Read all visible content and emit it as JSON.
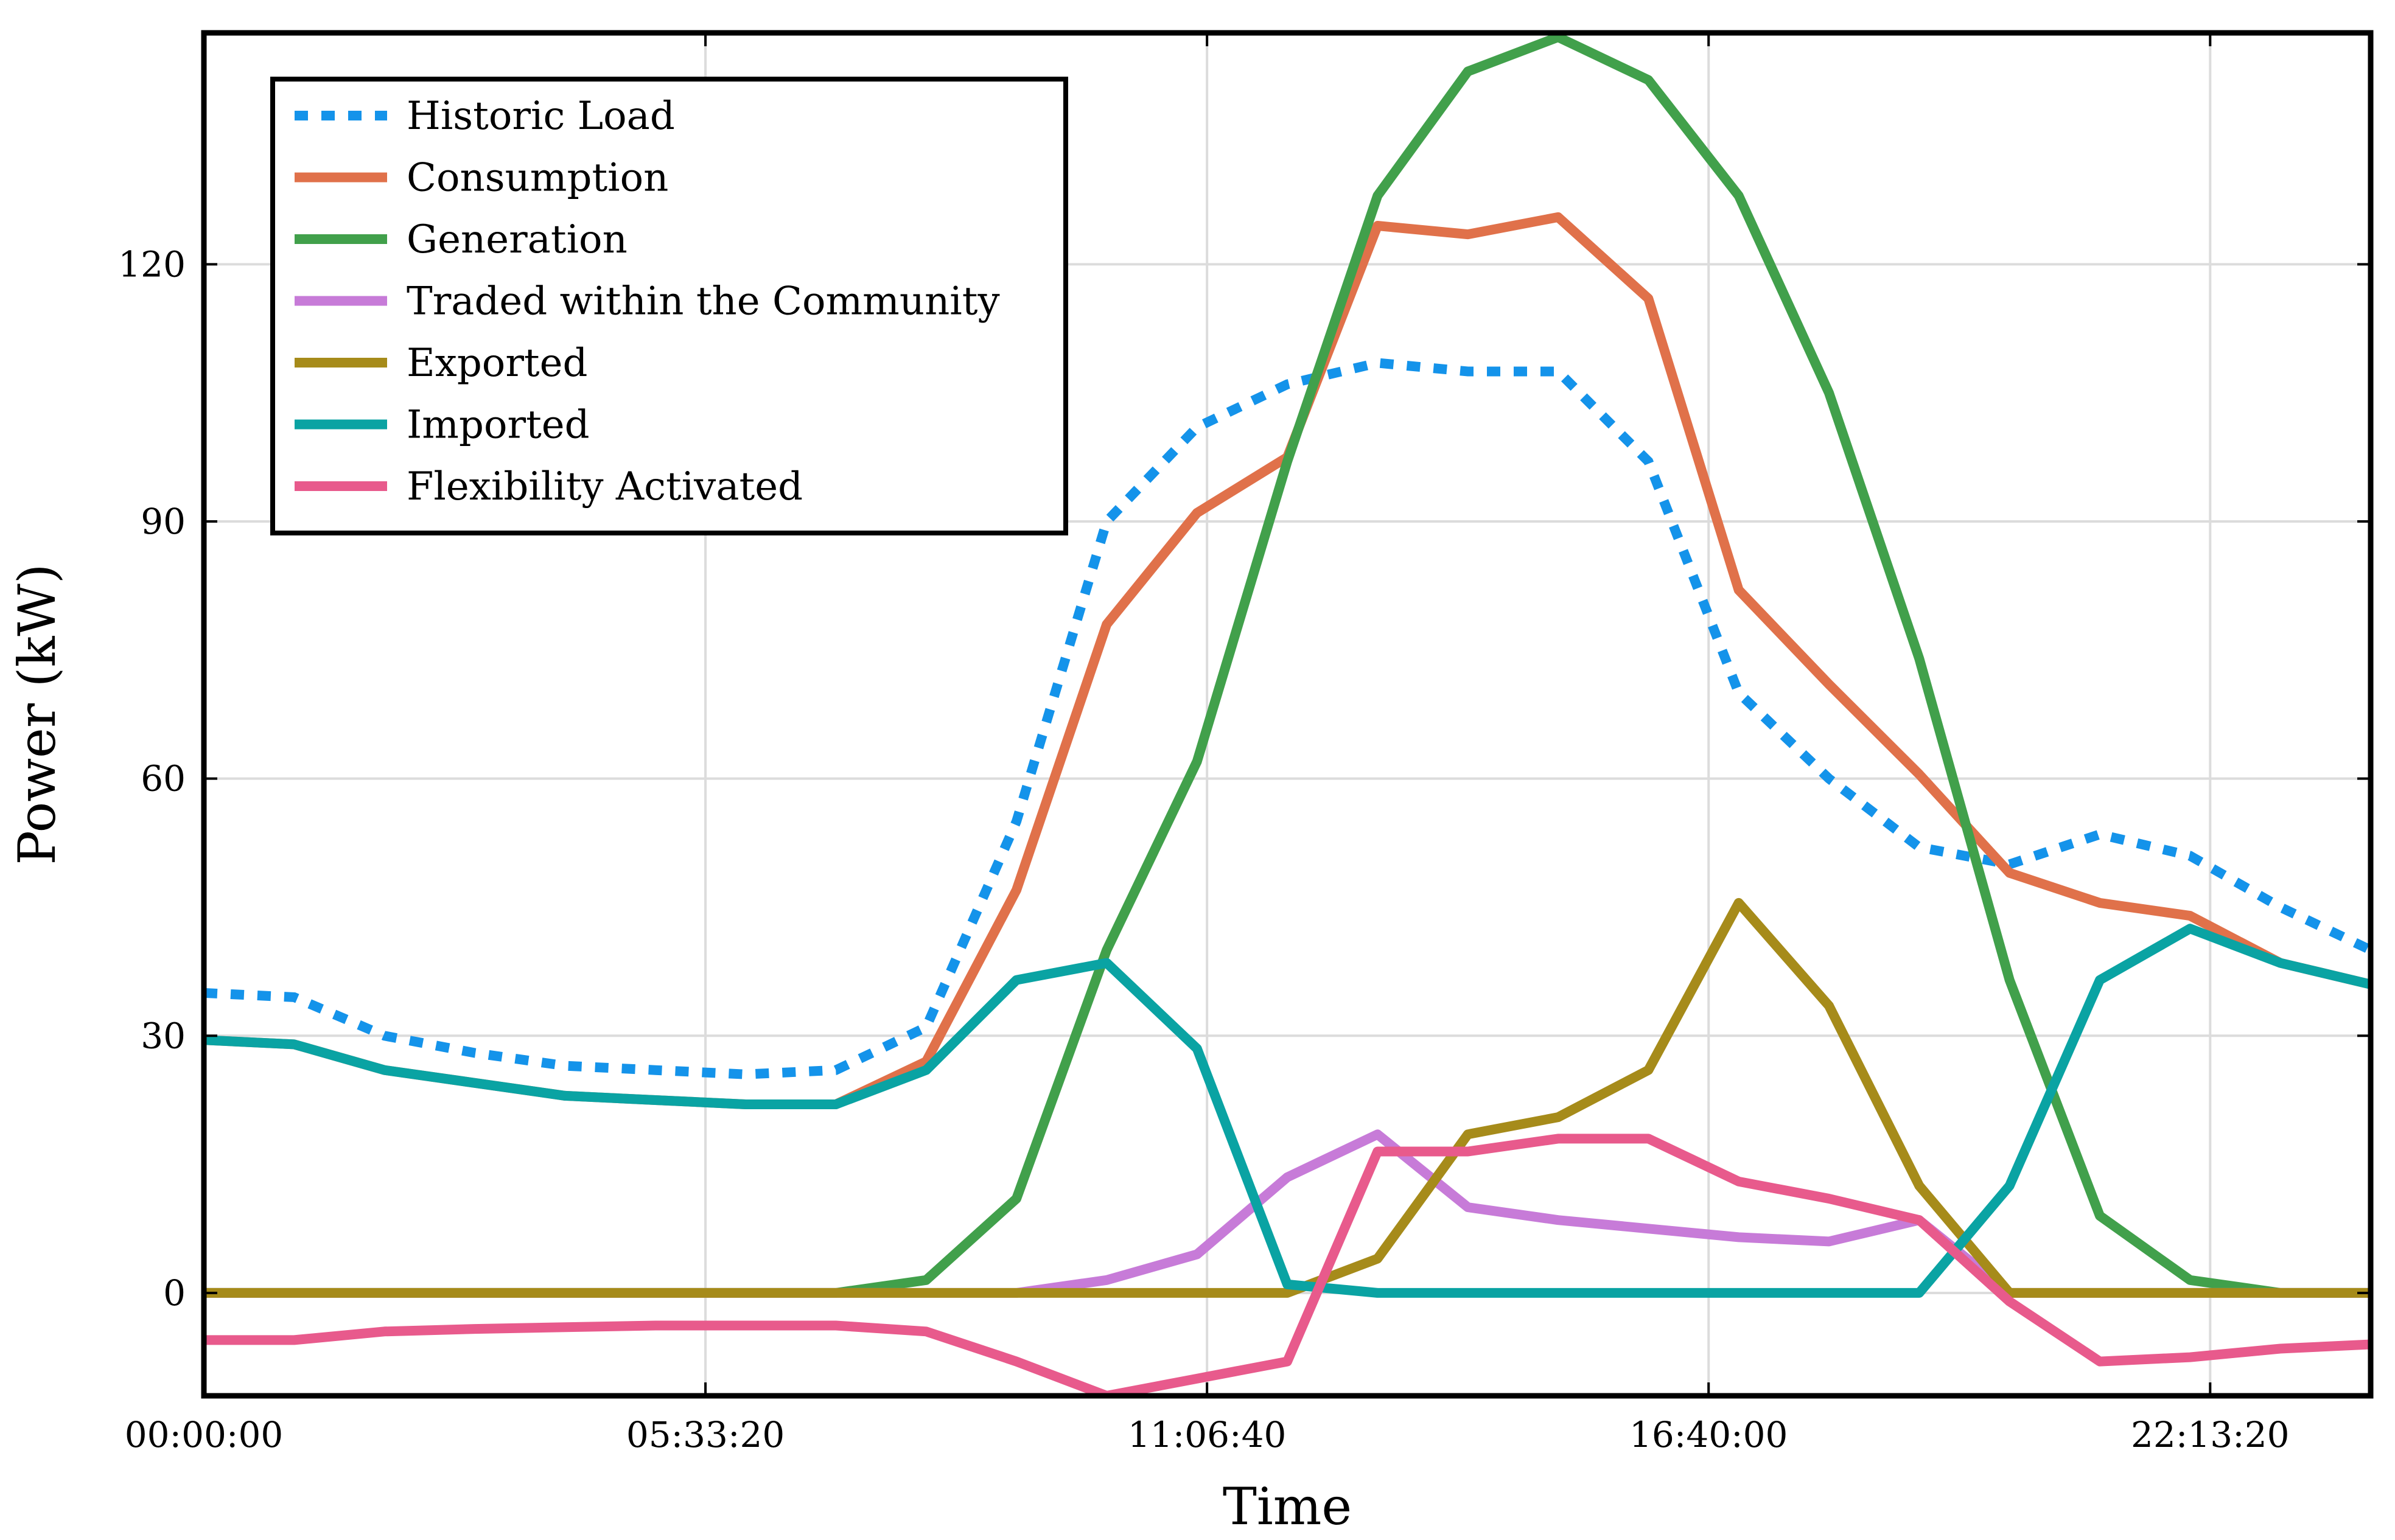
{
  "chart_data": {
    "type": "line",
    "title": "",
    "xlabel": "Time",
    "ylabel": "Power (kW)",
    "xlim": [
      0,
      86400
    ],
    "ylim": [
      -12,
      147
    ],
    "grid": true,
    "legend_position": "top-left",
    "x_ticks": [
      {
        "value": 0,
        "label": "00:00:00"
      },
      {
        "value": 20000,
        "label": "05:33:20"
      },
      {
        "value": 40000,
        "label": "11:06:40"
      },
      {
        "value": 60000,
        "label": "16:40:00"
      },
      {
        "value": 80000,
        "label": "22:13:20"
      }
    ],
    "y_ticks": [
      {
        "value": 0,
        "label": "0"
      },
      {
        "value": 30,
        "label": "30"
      },
      {
        "value": 60,
        "label": "60"
      },
      {
        "value": 90,
        "label": "90"
      },
      {
        "value": 120,
        "label": "120"
      }
    ],
    "x": [
      0,
      3600,
      7200,
      10800,
      14400,
      18000,
      21600,
      25200,
      28800,
      32400,
      36000,
      39600,
      43200,
      46800,
      50400,
      54000,
      57600,
      61200,
      64800,
      68400,
      72000,
      75600,
      79200,
      82800,
      86400
    ],
    "series": [
      {
        "name": "Historic Load",
        "color": "#1493ea",
        "style": "dotted",
        "values": [
          35,
          34.5,
          30,
          28,
          26.5,
          26,
          25.5,
          26,
          31,
          55,
          90,
          101,
          106,
          108.5,
          107.5,
          107.5,
          97,
          70,
          60,
          52,
          50,
          53.5,
          51,
          45,
          40
        ]
      },
      {
        "name": "Consumption",
        "color": "#e0714a",
        "style": "solid",
        "values": [
          29.5,
          29,
          26,
          24.5,
          23,
          22.5,
          22,
          22,
          27,
          47,
          78,
          91,
          97.5,
          124.5,
          123.5,
          125.5,
          116,
          82,
          71,
          60.5,
          49,
          45.5,
          44,
          38.5,
          36
        ]
      },
      {
        "name": "Generation",
        "color": "#41a04b",
        "style": "solid",
        "values": [
          0,
          0,
          0,
          0,
          0,
          0,
          0,
          0,
          1.5,
          11,
          40,
          62,
          97,
          128,
          142.5,
          146.5,
          141.5,
          128,
          105,
          74,
          36.5,
          9,
          1.5,
          0,
          0
        ]
      },
      {
        "name": "Traded within the Community",
        "color": "#c77bd8",
        "style": "solid",
        "values": [
          0,
          0,
          0,
          0,
          0,
          0,
          0,
          0,
          0,
          0,
          1.5,
          4.5,
          13.5,
          18.5,
          10,
          8.5,
          7.5,
          6.5,
          6,
          8.5,
          0,
          0,
          0,
          0,
          0
        ]
      },
      {
        "name": "Exported",
        "color": "#a68b1a",
        "style": "solid",
        "values": [
          0,
          0,
          0,
          0,
          0,
          0,
          0,
          0,
          0,
          0,
          0,
          0,
          0,
          4,
          18.5,
          20.5,
          26,
          45.5,
          33.5,
          12.5,
          0,
          0,
          0,
          0,
          0
        ]
      },
      {
        "name": "Imported",
        "color": "#0aa3a3",
        "style": "solid",
        "values": [
          29.5,
          29,
          26,
          24.5,
          23,
          22.5,
          22,
          22,
          26,
          36.5,
          38.5,
          28.5,
          1,
          0,
          0,
          0,
          0,
          0,
          0,
          0,
          12.5,
          36.5,
          42.5,
          38.5,
          36
        ]
      },
      {
        "name": "Flexibility Activated",
        "color": "#e85a8c",
        "style": "solid",
        "values": [
          -5.5,
          -5.5,
          -4.5,
          -4.2,
          -4,
          -3.8,
          -3.8,
          -3.8,
          -4.5,
          -8,
          -12,
          -10,
          -8,
          16.5,
          16.5,
          18,
          18,
          13,
          11,
          8.5,
          -1,
          -8,
          -7.5,
          -6.5,
          -6
        ]
      }
    ]
  }
}
